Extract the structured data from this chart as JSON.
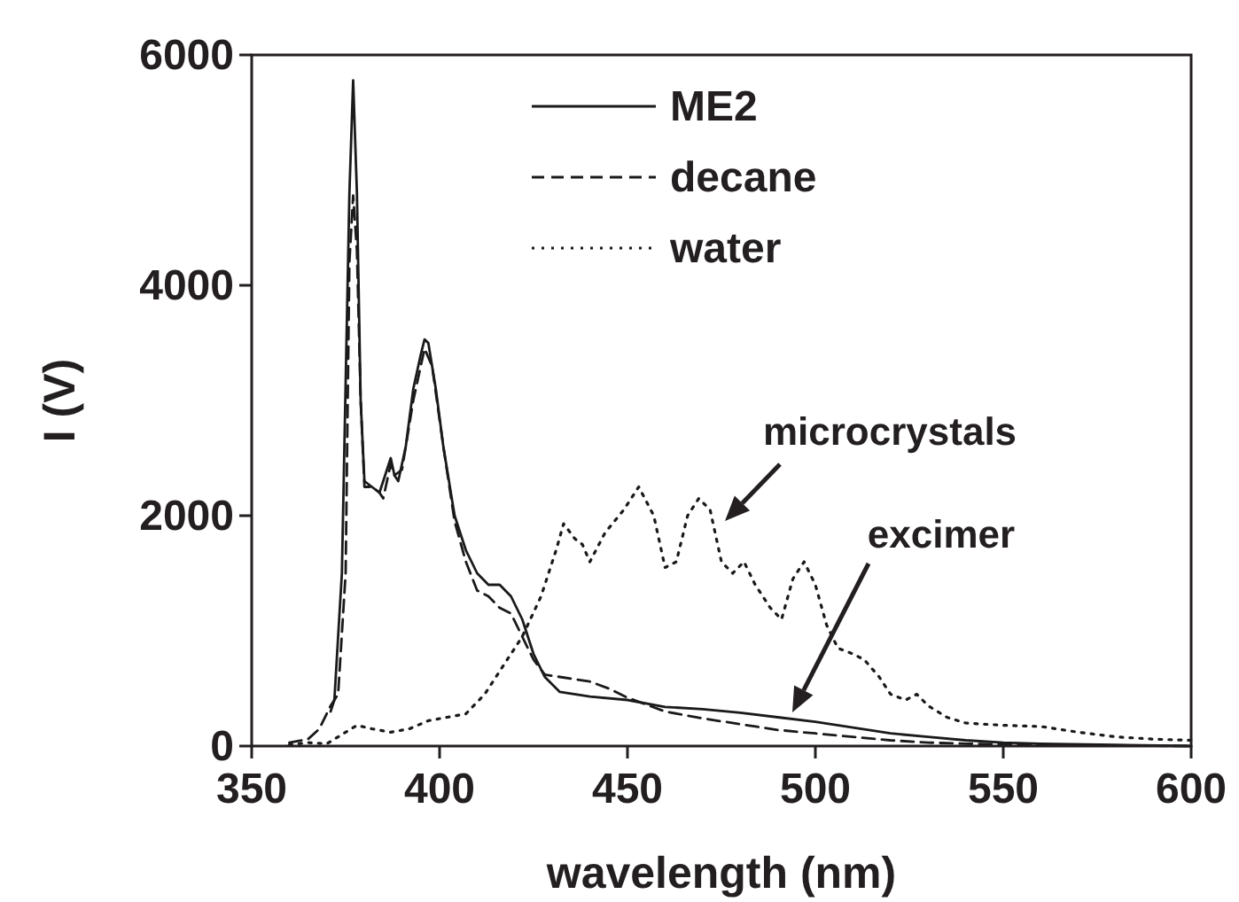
{
  "chart_data": {
    "type": "line",
    "xlabel": "wavelength (nm)",
    "ylabel": "I (V)",
    "xlim": [
      350,
      600
    ],
    "xticks": [
      350,
      400,
      450,
      500,
      550,
      600
    ],
    "ylim": [
      0,
      6000
    ],
    "yticks": [
      0,
      2000,
      4000,
      6000
    ],
    "grid": false,
    "legend": "top",
    "marker": "none",
    "annotations": [
      "microcrystals",
      "excimer"
    ],
    "series": [
      {
        "name": "ME2",
        "color": "#1a1a1a",
        "line_style": "solid",
        "x": [
          371,
          372,
          374,
          376,
          377,
          378,
          379,
          380,
          382,
          384,
          386,
          387,
          388,
          389,
          391,
          393,
          395,
          396,
          397,
          399,
          401,
          404,
          407,
          410,
          413,
          416,
          419,
          422,
          425,
          428,
          432,
          440,
          450,
          460,
          470,
          480,
          490,
          500,
          510,
          520,
          530,
          540,
          550,
          560,
          580,
          600
        ],
        "values": [
          300,
          400,
          1500,
          4800,
          5780,
          4800,
          3000,
          2300,
          2250,
          2200,
          2400,
          2500,
          2350,
          2300,
          2600,
          3100,
          3400,
          3530,
          3500,
          3100,
          2600,
          2000,
          1700,
          1500,
          1400,
          1400,
          1300,
          1100,
          800,
          600,
          470,
          430,
          400,
          340,
          320,
          290,
          250,
          210,
          160,
          110,
          80,
          50,
          30,
          20,
          10,
          0
        ]
      },
      {
        "name": "decane",
        "color": "#1a1a1a",
        "line_style": "dashed",
        "x": [
          360,
          365,
          368,
          371,
          373,
          375,
          376,
          377,
          378,
          379,
          380,
          382,
          384,
          385,
          387,
          388,
          390,
          393,
          396,
          398,
          401,
          404,
          407,
          410,
          413,
          416,
          419,
          422,
          425,
          428,
          432,
          440,
          445,
          450,
          460,
          470,
          480,
          490,
          500,
          510,
          520,
          530,
          540,
          560,
          600
        ],
        "values": [
          30,
          60,
          150,
          350,
          450,
          1500,
          4200,
          4780,
          4300,
          3000,
          2250,
          2250,
          2200,
          2150,
          2450,
          2350,
          2400,
          3000,
          3450,
          3300,
          2600,
          1950,
          1600,
          1350,
          1300,
          1200,
          1150,
          950,
          750,
          620,
          600,
          560,
          500,
          420,
          300,
          240,
          190,
          140,
          110,
          80,
          50,
          30,
          20,
          10,
          0
        ]
      },
      {
        "name": "water",
        "color": "#1a1a1a",
        "line_style": "dotted",
        "x": [
          360,
          365,
          370,
          375,
          378,
          382,
          387,
          392,
          397,
          402,
          407,
          412,
          417,
          422,
          427,
          431,
          433,
          436,
          438,
          440,
          444,
          449,
          453,
          457,
          460,
          463,
          466,
          469,
          472,
          475,
          478,
          481,
          484,
          488,
          491,
          494,
          497,
          500,
          503,
          506,
          510,
          513,
          517,
          520,
          524,
          527,
          530,
          535,
          540,
          550,
          560,
          570,
          580,
          590,
          600
        ],
        "values": [
          10,
          30,
          20,
          120,
          180,
          150,
          120,
          150,
          220,
          250,
          280,
          450,
          700,
          950,
          1300,
          1700,
          1930,
          1800,
          1750,
          1600,
          1850,
          2050,
          2250,
          2000,
          1550,
          1600,
          2000,
          2150,
          2050,
          1600,
          1500,
          1600,
          1400,
          1200,
          1100,
          1450,
          1600,
          1400,
          1050,
          850,
          800,
          750,
          600,
          450,
          400,
          450,
          350,
          250,
          200,
          180,
          170,
          120,
          80,
          60,
          50
        ]
      }
    ]
  }
}
